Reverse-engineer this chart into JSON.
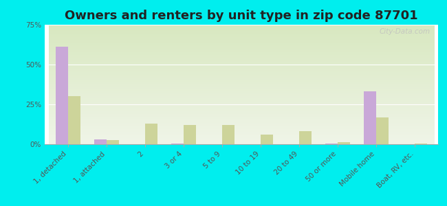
{
  "title": "Owners and renters by unit type in zip code 87701",
  "categories": [
    "1, detached",
    "1, attached",
    "2",
    "3 or 4",
    "5 to 9",
    "10 to 19",
    "20 to 49",
    "50 or more",
    "Mobile home",
    "Boat, RV, etc."
  ],
  "owner_values": [
    61,
    3,
    0,
    0.5,
    0,
    0,
    0,
    0.3,
    33,
    0
  ],
  "renter_values": [
    30,
    2.5,
    13,
    12,
    12,
    6,
    8,
    1.5,
    17,
    0.5
  ],
  "owner_color": "#c9a8d8",
  "renter_color": "#cdd49a",
  "background_color": "#00eeee",
  "plot_bg_color": "#e8f0da",
  "ylim": [
    0,
    75
  ],
  "yticks": [
    0,
    25,
    50,
    75
  ],
  "ytick_labels": [
    "0%",
    "25%",
    "50%",
    "75%"
  ],
  "bar_width": 0.32,
  "title_fontsize": 13,
  "tick_fontsize": 7.5,
  "legend_fontsize": 9,
  "watermark": "City-Data.com"
}
